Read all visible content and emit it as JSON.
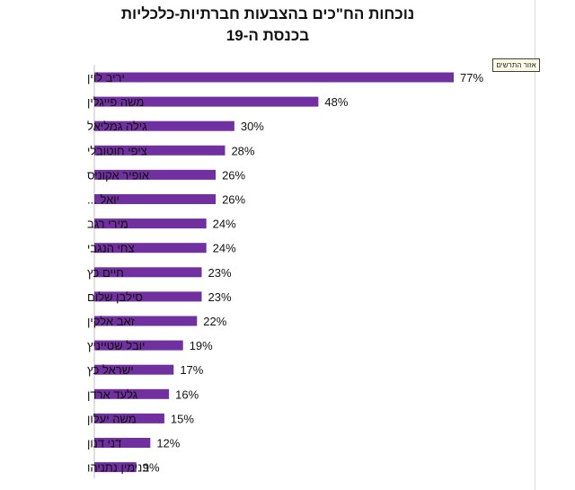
{
  "chart_data": {
    "type": "bar",
    "orientation": "horizontal",
    "title_line1": "נוכחות הח\"כים בהצבעות חברתיות-כלכליות",
    "title_line2": "בכנסת ה-19",
    "xlim": [
      0,
      100
    ],
    "bar_color": "#7030a0",
    "categories": [
      "יריב לוין",
      "משה פייגלין",
      "גילה גמליאל",
      "ציפי חוטובלי",
      "אופיר אקוניס",
      "יואל ...",
      "מירי רגב",
      "צחי הנגבי",
      "חיים כץ",
      "סילבן שלום",
      "זאב אלקין",
      "יובל שטייניץ",
      "ישראל כץ",
      "גלעד ארדן",
      "משה יעלון",
      "דני דנון",
      "בנימין נתניהו"
    ],
    "values": [
      77,
      48,
      30,
      28,
      26,
      26,
      24,
      24,
      23,
      23,
      22,
      19,
      17,
      16,
      15,
      12,
      9
    ],
    "value_labels": [
      "77%",
      "48%",
      "30%",
      "28%",
      "26%",
      "26%",
      "24%",
      "24%",
      "23%",
      "23%",
      "22%",
      "19%",
      "17%",
      "16%",
      "15%",
      "12%",
      "9%"
    ]
  },
  "plot_area_label": "אזור התרשים"
}
